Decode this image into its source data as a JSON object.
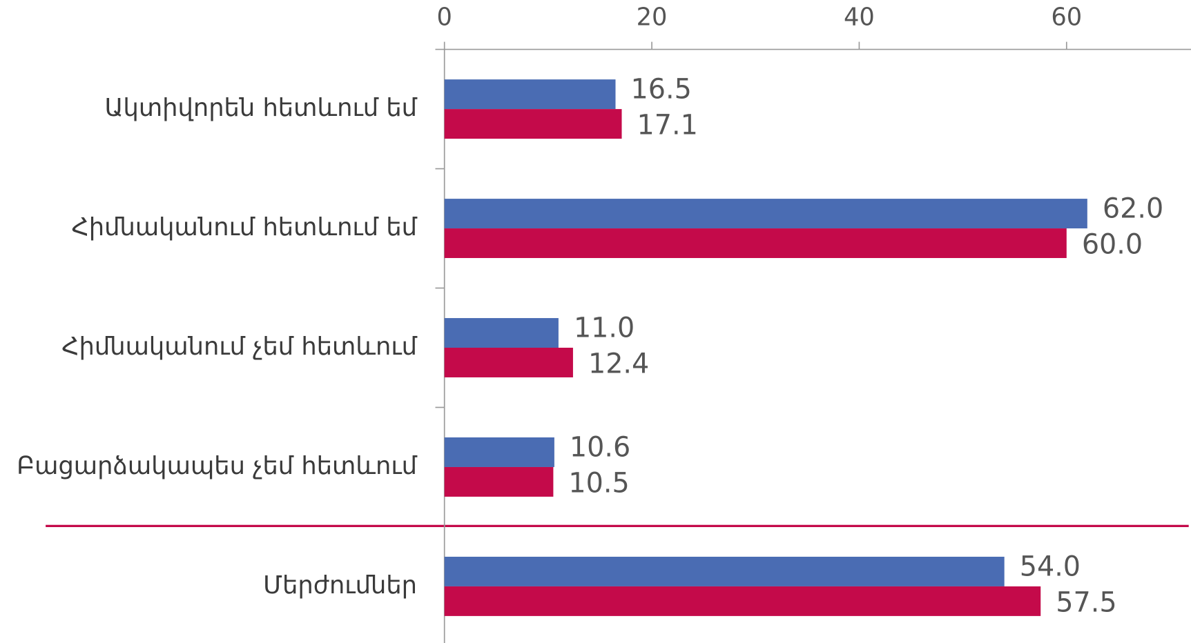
{
  "chart_data": {
    "type": "bar",
    "orientation": "horizontal",
    "categories": [
      "Ակտիվորեն հետևում եմ",
      "Հիմնականում հետևում եմ",
      "Հիմնականում չեմ հետևում",
      "Բացարձակապես չեմ հետևում",
      "Մերժումներ"
    ],
    "series": [
      {
        "color": "#4a6cb3",
        "values": [
          16.5,
          62.0,
          11.0,
          10.6,
          54.0
        ],
        "value_labels": [
          "16.5",
          "62.0",
          "11.0",
          "10.6",
          "54.0"
        ]
      },
      {
        "color": "#c40a4a",
        "values": [
          17.1,
          60.0,
          12.4,
          10.5,
          57.5
        ],
        "value_labels": [
          "17.1",
          "60.0",
          "12.4",
          "10.5",
          "57.5"
        ]
      }
    ],
    "xlim": [
      0,
      72
    ],
    "xticks": [
      0,
      20,
      40,
      60
    ],
    "axis_position": "top",
    "grid": false
  }
}
